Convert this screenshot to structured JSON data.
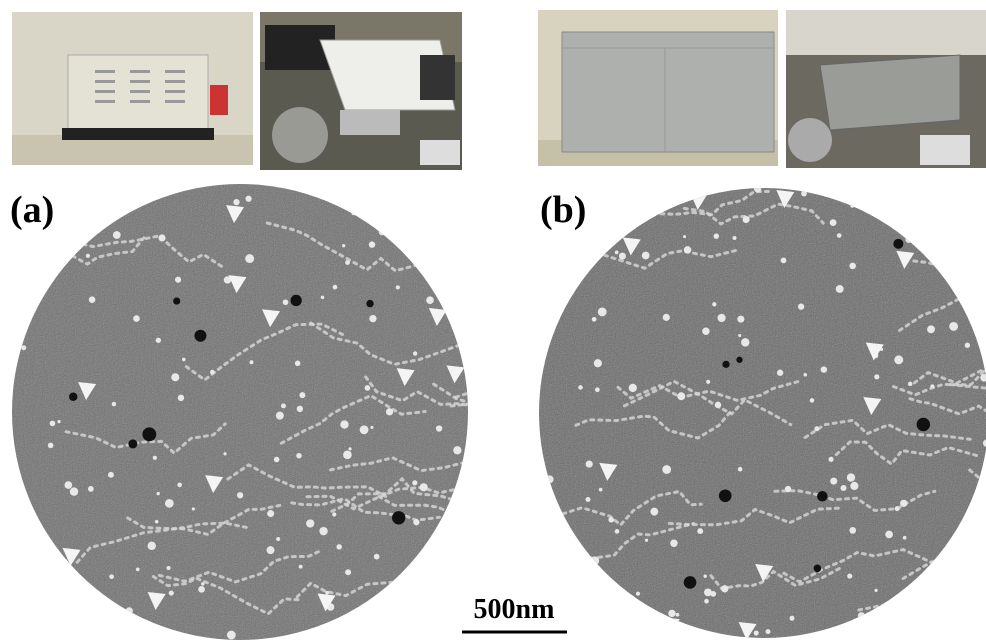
{
  "panels": [
    {
      "label": "(a)"
    },
    {
      "label": "(b)"
    }
  ],
  "scale_bar": {
    "label": "500nm"
  }
}
